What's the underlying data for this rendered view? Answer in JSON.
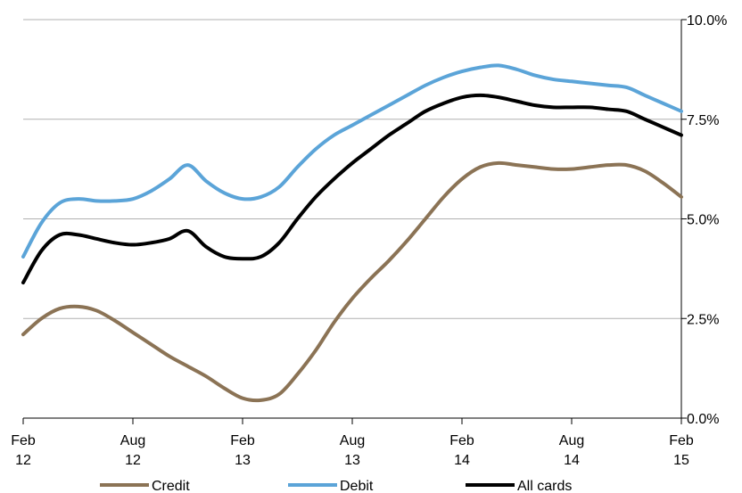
{
  "chart_data": {
    "type": "line",
    "title": "",
    "xlabel": "",
    "ylabel": "",
    "x_range": [
      0,
      36
    ],
    "ylim": [
      0,
      10
    ],
    "y_ticks": [
      0,
      2.5,
      5,
      7.5,
      10
    ],
    "y_tick_labels": [
      "0.0%",
      "2.5%",
      "5.0%",
      "7.5%",
      "10.0%"
    ],
    "y_axis_side": "right",
    "grid": "horizontal",
    "x_ticks": [
      {
        "pos": 0,
        "line1": "Feb",
        "line2": "12"
      },
      {
        "pos": 6,
        "line1": "Aug",
        "line2": "12"
      },
      {
        "pos": 12,
        "line1": "Feb",
        "line2": "13"
      },
      {
        "pos": 18,
        "line1": "Aug",
        "line2": "13"
      },
      {
        "pos": 24,
        "line1": "Feb",
        "line2": "14"
      },
      {
        "pos": 30,
        "line1": "Aug",
        "line2": "14"
      },
      {
        "pos": 36,
        "line1": "Feb",
        "line2": "15"
      }
    ],
    "legend_position": "bottom",
    "series": [
      {
        "name": "Credit",
        "color": "#8B7355",
        "x": [
          0,
          1,
          2,
          3,
          4,
          5,
          6,
          7,
          8,
          9,
          10,
          11,
          12,
          13,
          14,
          15,
          16,
          17,
          18,
          19,
          20,
          21,
          22,
          23,
          24,
          25,
          26,
          27,
          28,
          29,
          30,
          31,
          32,
          33,
          34,
          35,
          36
        ],
        "values": [
          2.1,
          2.5,
          2.75,
          2.8,
          2.7,
          2.45,
          2.15,
          1.85,
          1.55,
          1.3,
          1.05,
          0.75,
          0.5,
          0.45,
          0.6,
          1.1,
          1.7,
          2.4,
          3.0,
          3.5,
          3.95,
          4.45,
          5.0,
          5.55,
          6.0,
          6.3,
          6.4,
          6.35,
          6.3,
          6.25,
          6.25,
          6.3,
          6.35,
          6.35,
          6.2,
          5.9,
          5.55
        ]
      },
      {
        "name": "Debit",
        "color": "#5BA4D8",
        "x": [
          0,
          1,
          2,
          3,
          4,
          5,
          6,
          7,
          8,
          9,
          10,
          11,
          12,
          13,
          14,
          15,
          16,
          17,
          18,
          19,
          20,
          21,
          22,
          23,
          24,
          25,
          26,
          27,
          28,
          29,
          30,
          31,
          32,
          33,
          34,
          35,
          36
        ],
        "values": [
          4.05,
          4.9,
          5.4,
          5.5,
          5.45,
          5.45,
          5.5,
          5.7,
          6.0,
          6.35,
          5.95,
          5.65,
          5.5,
          5.55,
          5.8,
          6.3,
          6.75,
          7.1,
          7.35,
          7.6,
          7.85,
          8.1,
          8.35,
          8.55,
          8.7,
          8.8,
          8.85,
          8.75,
          8.6,
          8.5,
          8.45,
          8.4,
          8.35,
          8.3,
          8.1,
          7.9,
          7.7
        ]
      },
      {
        "name": "All cards",
        "color": "#000000",
        "x": [
          0,
          1,
          2,
          3,
          4,
          5,
          6,
          7,
          8,
          9,
          10,
          11,
          12,
          13,
          14,
          15,
          16,
          17,
          18,
          19,
          20,
          21,
          22,
          23,
          24,
          25,
          26,
          27,
          28,
          29,
          30,
          31,
          32,
          33,
          34,
          35,
          36
        ],
        "values": [
          3.4,
          4.2,
          4.6,
          4.6,
          4.5,
          4.4,
          4.35,
          4.4,
          4.5,
          4.7,
          4.3,
          4.05,
          4.0,
          4.05,
          4.4,
          5.0,
          5.55,
          6.0,
          6.4,
          6.75,
          7.1,
          7.4,
          7.7,
          7.9,
          8.05,
          8.1,
          8.05,
          7.95,
          7.85,
          7.8,
          7.8,
          7.8,
          7.75,
          7.7,
          7.5,
          7.3,
          7.1
        ]
      }
    ]
  }
}
